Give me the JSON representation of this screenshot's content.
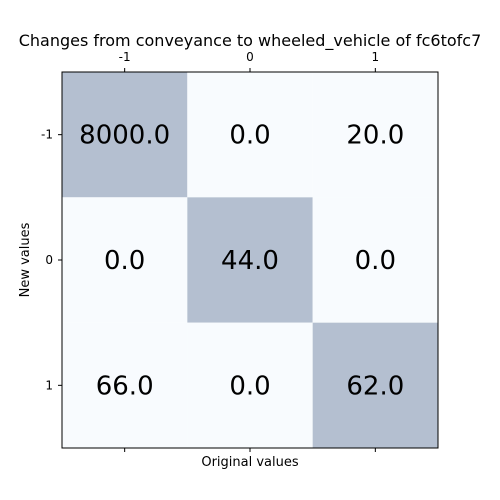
{
  "chart_data": {
    "type": "heatmap",
    "title": "Changes from conveyance to wheeled_vehicle of fc6tofc7",
    "xlabel": "Original values",
    "ylabel": "New values",
    "x_categories": [
      "-1",
      "0",
      "1"
    ],
    "y_categories": [
      "-1",
      "0",
      "1"
    ],
    "values": [
      [
        8000.0,
        0.0,
        20.0
      ],
      [
        0.0,
        44.0,
        0.0
      ],
      [
        66.0,
        0.0,
        62.0
      ]
    ],
    "cell_labels": [
      [
        "8000.0",
        "0.0",
        "20.0"
      ],
      [
        "0.0",
        "44.0",
        "0.0"
      ],
      [
        "66.0",
        "0.0",
        "62.0"
      ]
    ],
    "highlight_color": "#b4bfd0",
    "base_color": "#f8fbfe",
    "x_ticks_position": "top",
    "grid": false
  }
}
